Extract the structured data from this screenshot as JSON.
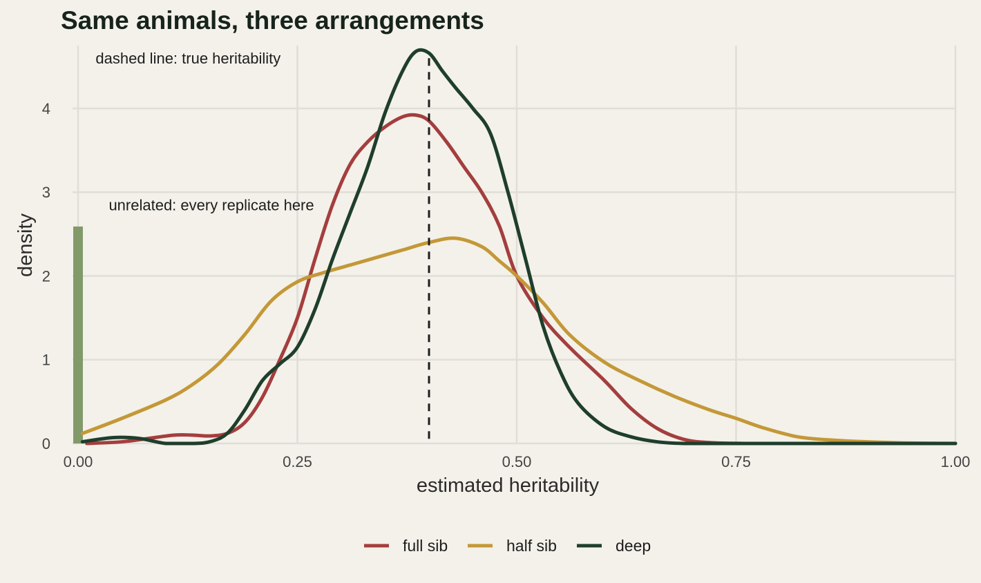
{
  "chart_data": {
    "type": "line",
    "title": "Same animals, three arrangements",
    "xlabel": "estimated heritability",
    "ylabel": "density",
    "xlim": [
      0,
      1
    ],
    "ylim": [
      0,
      4.75
    ],
    "x_ticks": [
      0,
      0.25,
      0.5,
      0.75,
      1
    ],
    "x_tick_labels": [
      "0.00",
      "0.25",
      "0.50",
      "0.75",
      "1.00"
    ],
    "y_ticks": [
      0,
      1,
      2,
      3,
      4
    ],
    "y_tick_labels": [
      "0",
      "1",
      "2",
      "3",
      "4"
    ],
    "grid": true,
    "legend_position": "bottom",
    "reference_line": {
      "x": 0.4,
      "style": "dashed",
      "color": "#1d1d1d"
    },
    "annotations": [
      {
        "text": "dashed line: true heritability",
        "x": 0.02,
        "y": 4.6
      },
      {
        "text": "unrelated: every replicate here",
        "x": 0.035,
        "y": 2.85
      }
    ],
    "bar": {
      "name": "unrelated",
      "x": 0,
      "width": 0.011,
      "y": 2.59,
      "color": "#82996a"
    },
    "series": [
      {
        "name": "full sib",
        "color": "#a43e3e",
        "x": [
          0.01,
          0.05,
          0.08,
          0.11,
          0.13,
          0.15,
          0.17,
          0.19,
          0.21,
          0.23,
          0.25,
          0.27,
          0.29,
          0.31,
          0.33,
          0.35,
          0.37,
          0.385,
          0.4,
          0.42,
          0.44,
          0.46,
          0.48,
          0.5,
          0.53,
          0.56,
          0.6,
          0.63,
          0.66,
          0.69,
          0.72,
          0.76,
          0.82,
          0.9,
          1.0
        ],
        "values": [
          0.0,
          0.02,
          0.06,
          0.1,
          0.1,
          0.09,
          0.12,
          0.25,
          0.55,
          1.0,
          1.5,
          2.2,
          2.85,
          3.33,
          3.6,
          3.78,
          3.9,
          3.92,
          3.85,
          3.6,
          3.3,
          3.0,
          2.6,
          2.0,
          1.5,
          1.15,
          0.75,
          0.42,
          0.18,
          0.05,
          0.01,
          0.0,
          0.0,
          0.0,
          0.0
        ]
      },
      {
        "name": "half sib",
        "color": "#c49837",
        "x": [
          0.005,
          0.05,
          0.1,
          0.13,
          0.16,
          0.19,
          0.22,
          0.25,
          0.28,
          0.31,
          0.34,
          0.37,
          0.4,
          0.43,
          0.46,
          0.48,
          0.5,
          0.53,
          0.56,
          0.6,
          0.64,
          0.68,
          0.72,
          0.75,
          0.78,
          0.82,
          0.86,
          0.9,
          0.95,
          1.0
        ],
        "values": [
          0.12,
          0.3,
          0.52,
          0.7,
          0.95,
          1.3,
          1.7,
          1.93,
          2.04,
          2.13,
          2.22,
          2.31,
          2.4,
          2.45,
          2.35,
          2.18,
          2.0,
          1.68,
          1.3,
          0.97,
          0.75,
          0.56,
          0.4,
          0.3,
          0.19,
          0.08,
          0.04,
          0.02,
          0.005,
          0.0
        ]
      },
      {
        "name": "deep",
        "color": "#1f3e2c",
        "x": [
          0.005,
          0.04,
          0.07,
          0.1,
          0.13,
          0.15,
          0.17,
          0.19,
          0.21,
          0.23,
          0.25,
          0.27,
          0.29,
          0.31,
          0.33,
          0.35,
          0.37,
          0.385,
          0.4,
          0.415,
          0.43,
          0.45,
          0.47,
          0.49,
          0.51,
          0.53,
          0.55,
          0.57,
          0.6,
          0.63,
          0.66,
          0.69,
          0.75,
          0.85,
          1.0
        ],
        "values": [
          0.02,
          0.07,
          0.06,
          0.0,
          0.0,
          0.02,
          0.12,
          0.4,
          0.75,
          0.95,
          1.15,
          1.6,
          2.2,
          2.75,
          3.3,
          3.95,
          4.45,
          4.68,
          4.66,
          4.45,
          4.25,
          4.0,
          3.7,
          3.0,
          2.2,
          1.4,
          0.85,
          0.48,
          0.2,
          0.08,
          0.02,
          0.0,
          0.0,
          0.0,
          0.0
        ]
      }
    ]
  }
}
